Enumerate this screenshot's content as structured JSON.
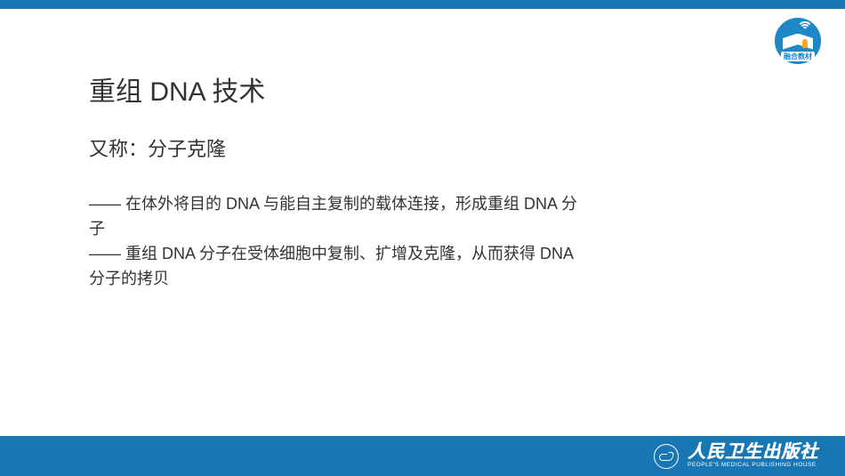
{
  "colors": {
    "primary": "#1976b5",
    "badge_bg": "#1e88c7",
    "text": "#333333",
    "white": "#ffffff",
    "accent": "#f5a623"
  },
  "badge": {
    "label": "融合教材"
  },
  "slide": {
    "title": "重组 DNA 技术",
    "subtitle": "又称：分子克隆",
    "body_line1": "—— 在体外将目的 DNA 与能自主复制的载体连接，形成重组 DNA 分子",
    "body_line2": "—— 重组 DNA 分子在受体细胞中复制、扩增及克隆，从而获得 DNA 分子的拷贝"
  },
  "footer": {
    "publisher_cn": "人民卫生出版社",
    "publisher_en": "PEOPLE'S MEDICAL PUBLISHING HOUSE"
  },
  "typography": {
    "title_fontsize": 30,
    "subtitle_fontsize": 22,
    "body_fontsize": 18
  }
}
